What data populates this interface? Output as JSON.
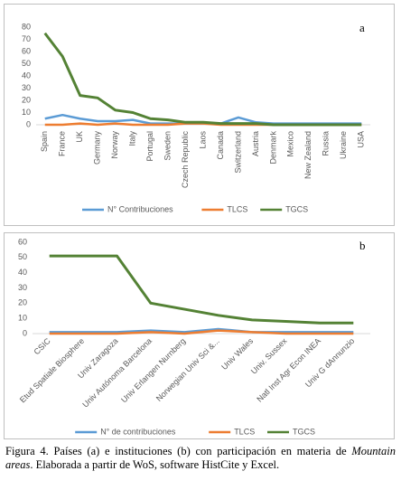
{
  "chart_data": [
    {
      "type": "line",
      "panel_label": "a",
      "categories": [
        "Spain",
        "France",
        "UK",
        "Germany",
        "Norway",
        "Italy",
        "Portugal",
        "Sweden",
        "Czech Republic",
        "Laos",
        "Canada",
        "Switzerland",
        "Austria",
        "Denmark",
        "Mexico",
        "New Zealand",
        "Russia",
        "Ukraine",
        "USA"
      ],
      "series": [
        {
          "name": "N° Contribuciones",
          "color": "#5b9bd5",
          "values": [
            5,
            8,
            5,
            3,
            3,
            4,
            1,
            1,
            1,
            1,
            1,
            6,
            2,
            1,
            1,
            1,
            1,
            1,
            1
          ]
        },
        {
          "name": "TLCS",
          "color": "#ed7d31",
          "values": [
            0,
            0,
            1,
            0,
            1,
            0,
            0,
            0,
            1,
            1,
            0,
            0,
            0,
            0,
            0,
            0,
            0,
            0,
            0
          ]
        },
        {
          "name": "TGCS",
          "color": "#548235",
          "values": [
            75,
            56,
            24,
            22,
            12,
            10,
            5,
            4,
            2,
            2,
            1,
            1,
            1,
            0,
            0,
            0,
            0,
            0,
            0
          ]
        }
      ],
      "ylim": [
        0,
        80
      ],
      "yticks": [
        0,
        10,
        20,
        30,
        40,
        50,
        60,
        70,
        80
      ],
      "grid": false,
      "legend": "bottom"
    },
    {
      "type": "line",
      "panel_label": "b",
      "categories": [
        "CSIC",
        "Etud Spatiale Biosphere",
        "Univ Zaragoza",
        "Univ Autónoma Barcelona",
        "Univ Erlangen Nurnberg",
        "Norwegian Univ Sci &...",
        "Univ Wales",
        "Univ. Sussex",
        "Natl Inst Agr Econ INEA",
        "Univ G dAnnunzio"
      ],
      "series": [
        {
          "name": "N° de contribuciones",
          "color": "#5b9bd5",
          "values": [
            1,
            1,
            1,
            2,
            1,
            3,
            1,
            1,
            1,
            1
          ]
        },
        {
          "name": "TLCS",
          "color": "#ed7d31",
          "values": [
            0,
            0,
            0,
            1,
            0,
            2,
            1,
            0,
            0,
            0
          ]
        },
        {
          "name": "TGCS",
          "color": "#548235",
          "values": [
            51,
            51,
            51,
            20,
            16,
            12,
            9,
            8,
            7,
            7
          ]
        }
      ],
      "ylim": [
        0,
        60
      ],
      "yticks": [
        0,
        10,
        20,
        30,
        40,
        50,
        60
      ],
      "grid": false,
      "legend": "bottom"
    }
  ],
  "caption": {
    "text_start": "Figura 4. Países (a) e instituciones (b) con participación en materia de ",
    "text_italic": "Mountain areas",
    "text_end": ". Elaborada a partir de WoS, software HistCite y Excel."
  }
}
